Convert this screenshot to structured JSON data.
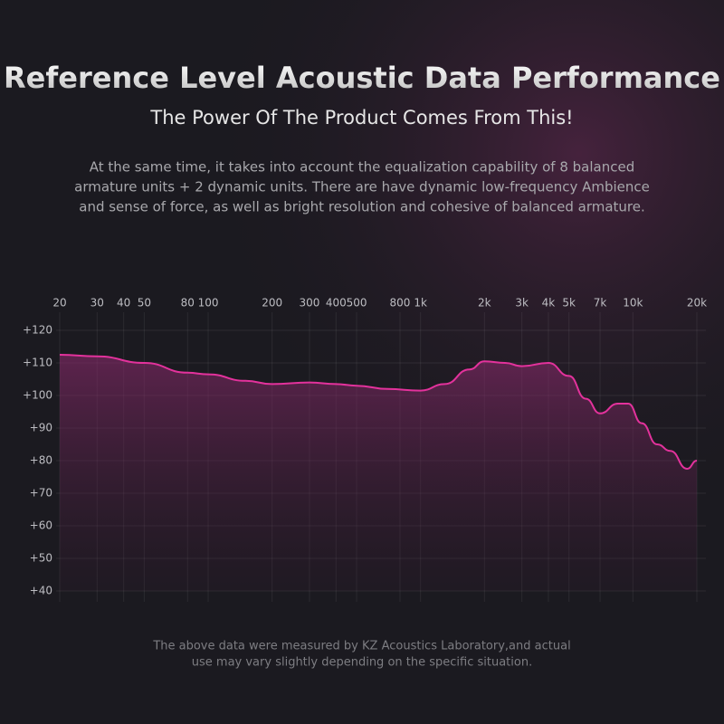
{
  "chart_data": {
    "type": "line",
    "title": "Reference Level Acoustic Data Performance",
    "subtitle": "The Power Of The Product Comes From This!",
    "description": [
      "At the same time, it takes into account the equalization capability of 8 balanced",
      "armature units + 2 dynamic units. There are have dynamic low-frequency Ambience",
      "and sense of force, as well as bright resolution and cohesive of balanced armature."
    ],
    "note": [
      "The above data were measured by KZ Acoustics Laboratory,and actual",
      "use may vary slightly depending on the specific situation."
    ],
    "x_scale": "log",
    "xlim": [
      20,
      20000
    ],
    "xticks": [
      20,
      30,
      40,
      50,
      80,
      100,
      200,
      300,
      400,
      500,
      800,
      {
        "value": 1000,
        "label": "1k"
      },
      {
        "value": 2000,
        "label": "2k"
      },
      {
        "value": 3000,
        "label": "3k"
      },
      {
        "value": 4000,
        "label": "4k"
      },
      {
        "value": 5000,
        "label": "5k"
      },
      {
        "value": 7000,
        "label": "7k"
      },
      {
        "value": 10000,
        "label": "10k"
      },
      {
        "value": 20000,
        "label": "20k"
      }
    ],
    "ylim": [
      40,
      120
    ],
    "yticks": [
      {
        "value": 120,
        "label": "+120"
      },
      {
        "value": 110,
        "label": "+110"
      },
      {
        "value": 100,
        "label": "+100"
      },
      {
        "value": 90,
        "label": "+90"
      },
      {
        "value": 80,
        "label": "+80"
      },
      {
        "value": 70,
        "label": "+70"
      },
      {
        "value": 60,
        "label": "+60"
      },
      {
        "value": 50,
        "label": "+50"
      },
      {
        "value": 40,
        "label": "+40"
      }
    ],
    "grid": true,
    "color": "#e3329c",
    "x": [
      20,
      30,
      50,
      80,
      100,
      150,
      200,
      300,
      400,
      500,
      700,
      1000,
      1300,
      1700,
      2000,
      2500,
      3000,
      4000,
      5000,
      6000,
      7000,
      8500,
      9500,
      11000,
      13000,
      15000,
      18000,
      20000
    ],
    "values": [
      112.5,
      112,
      110,
      107,
      106.5,
      104.5,
      103.5,
      104,
      103.5,
      103,
      102,
      101.5,
      103.5,
      108,
      110.5,
      110,
      109,
      110,
      106,
      99,
      94.5,
      97.5,
      97.5,
      91.5,
      85,
      83,
      77.5,
      80
    ]
  }
}
